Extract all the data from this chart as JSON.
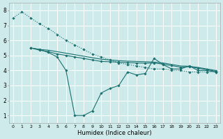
{
  "xlabel": "Humidex (Indice chaleur)",
  "xlim": [
    -0.5,
    23.5
  ],
  "ylim": [
    0.5,
    8.5
  ],
  "xticks": [
    0,
    1,
    2,
    3,
    4,
    5,
    6,
    7,
    8,
    9,
    10,
    11,
    12,
    13,
    14,
    15,
    16,
    17,
    18,
    19,
    20,
    21,
    22,
    23
  ],
  "yticks": [
    1,
    2,
    3,
    4,
    5,
    6,
    7,
    8
  ],
  "bg_color": "#ceeaea",
  "grid_color": "#ffffff",
  "line_color": "#1a7070",
  "dotted_line": {
    "x": [
      0,
      1,
      2,
      3,
      4,
      5,
      6,
      7,
      8,
      9,
      10,
      11,
      12,
      13,
      14,
      15,
      16,
      17,
      18,
      19,
      20,
      21,
      22,
      23
    ],
    "y": [
      7.5,
      7.9,
      7.5,
      7.1,
      6.8,
      6.4,
      6.0,
      5.7,
      5.4,
      5.1,
      4.9,
      4.7,
      4.5,
      4.4,
      4.3,
      4.2,
      4.1,
      4.1,
      4.0,
      4.0,
      3.9,
      3.9,
      3.9,
      3.9
    ]
  },
  "jagged_line": {
    "x": [
      2,
      3,
      4,
      5,
      6,
      7,
      8,
      9,
      10,
      11,
      12,
      13,
      14,
      15,
      16,
      17,
      18,
      19,
      20,
      21,
      22,
      23
    ],
    "y": [
      5.5,
      5.4,
      5.2,
      4.9,
      4.0,
      1.0,
      1.0,
      1.3,
      2.5,
      2.8,
      3.0,
      3.9,
      3.7,
      3.8,
      4.8,
      4.4,
      4.1,
      4.1,
      4.3,
      4.0,
      4.0,
      3.9
    ]
  },
  "smooth_line1": {
    "x": [
      2,
      3,
      4,
      5,
      6,
      7,
      8,
      9,
      10,
      11,
      12,
      13,
      14,
      15,
      16,
      17,
      18,
      19,
      20,
      21,
      22,
      23
    ],
    "y": [
      5.5,
      5.4,
      5.35,
      5.25,
      5.15,
      5.05,
      4.95,
      4.85,
      4.75,
      4.7,
      4.65,
      4.62,
      4.6,
      4.58,
      4.56,
      4.5,
      4.4,
      4.3,
      4.28,
      4.2,
      4.1,
      4.0
    ]
  },
  "smooth_line2": {
    "x": [
      2,
      3,
      4,
      5,
      6,
      7,
      8,
      9,
      10,
      11,
      12,
      13,
      14,
      15,
      16,
      17,
      18,
      19,
      20,
      21,
      22,
      23
    ],
    "y": [
      5.5,
      5.35,
      5.25,
      5.1,
      5.0,
      4.9,
      4.8,
      4.7,
      4.6,
      4.58,
      4.55,
      4.52,
      4.5,
      4.48,
      4.5,
      4.42,
      4.32,
      4.22,
      4.25,
      4.15,
      4.05,
      3.95
    ]
  }
}
